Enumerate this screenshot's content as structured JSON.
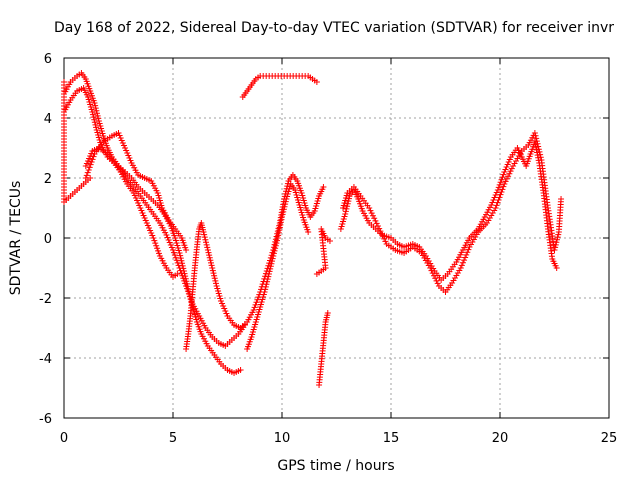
{
  "chart_data": {
    "type": "scatter",
    "title": "Day 168 of 2022, Sidereal Day-to-day VTEC variation (SDTVAR) for receiver invr",
    "xlabel": "GPS time / hours",
    "ylabel": "SDTVAR / TECUs",
    "xlim": [
      0,
      25
    ],
    "ylim": [
      -6,
      6
    ],
    "xticks": [
      0,
      5,
      10,
      15,
      20,
      25
    ],
    "yticks": [
      -6,
      -4,
      -2,
      0,
      2,
      4,
      6
    ],
    "grid": true,
    "marker": "plus",
    "marker_color": "#ff0000",
    "series": [
      {
        "name": "trace-1",
        "points": [
          [
            0.0,
            4.8
          ],
          [
            0.3,
            5.2
          ],
          [
            0.6,
            5.4
          ],
          [
            0.8,
            5.5
          ],
          [
            1.0,
            5.3
          ],
          [
            1.2,
            4.9
          ],
          [
            1.4,
            4.5
          ],
          [
            1.6,
            3.9
          ],
          [
            1.8,
            3.4
          ],
          [
            2.0,
            3.0
          ],
          [
            2.2,
            2.7
          ],
          [
            2.5,
            2.4
          ],
          [
            2.8,
            2.2
          ],
          [
            3.1,
            2.0
          ],
          [
            3.4,
            1.7
          ],
          [
            3.7,
            1.5
          ],
          [
            4.0,
            1.3
          ],
          [
            4.3,
            1.1
          ],
          [
            4.6,
            0.8
          ],
          [
            4.9,
            0.4
          ],
          [
            5.1,
            0.0
          ],
          [
            5.3,
            -0.5
          ],
          [
            5.5,
            -1.1
          ],
          [
            5.7,
            -1.7
          ],
          [
            5.9,
            -2.3
          ],
          [
            6.1,
            -2.8
          ],
          [
            6.3,
            -3.2
          ],
          [
            6.6,
            -3.6
          ],
          [
            6.9,
            -3.9
          ],
          [
            7.2,
            -4.2
          ],
          [
            7.5,
            -4.4
          ],
          [
            7.8,
            -4.5
          ],
          [
            8.1,
            -4.4
          ]
        ]
      },
      {
        "name": "trace-2",
        "points": [
          [
            0.0,
            4.2
          ],
          [
            0.3,
            4.6
          ],
          [
            0.6,
            4.9
          ],
          [
            0.9,
            5.0
          ],
          [
            1.1,
            4.7
          ],
          [
            1.3,
            4.2
          ],
          [
            1.5,
            3.6
          ],
          [
            1.7,
            3.1
          ],
          [
            2.0,
            2.7
          ],
          [
            2.3,
            2.5
          ],
          [
            2.6,
            2.3
          ],
          [
            2.9,
            2.0
          ],
          [
            3.2,
            1.7
          ],
          [
            3.5,
            1.4
          ],
          [
            3.8,
            1.1
          ],
          [
            4.1,
            0.8
          ],
          [
            4.4,
            0.5
          ],
          [
            4.7,
            0.1
          ],
          [
            5.0,
            -0.4
          ],
          [
            5.3,
            -1.0
          ],
          [
            5.6,
            -1.6
          ],
          [
            5.9,
            -2.2
          ],
          [
            6.2,
            -2.6
          ],
          [
            6.5,
            -3.0
          ],
          [
            6.8,
            -3.3
          ],
          [
            7.1,
            -3.5
          ],
          [
            7.4,
            -3.6
          ],
          [
            7.7,
            -3.4
          ],
          [
            8.0,
            -3.2
          ],
          [
            8.3,
            -2.9
          ]
        ]
      },
      {
        "name": "trace-3",
        "points": [
          [
            1.0,
            2.0
          ],
          [
            1.4,
            2.8
          ],
          [
            1.8,
            3.2
          ],
          [
            2.2,
            3.4
          ],
          [
            2.5,
            3.5
          ],
          [
            2.8,
            3.0
          ],
          [
            3.1,
            2.5
          ],
          [
            3.4,
            2.1
          ],
          [
            3.7,
            2.0
          ],
          [
            4.0,
            1.9
          ],
          [
            4.3,
            1.5
          ],
          [
            4.5,
            1.0
          ],
          [
            4.8,
            0.6
          ],
          [
            5.1,
            0.3
          ],
          [
            5.4,
            0.0
          ],
          [
            5.6,
            -0.4
          ]
        ]
      },
      {
        "name": "trace-4",
        "points": [
          [
            1.0,
            2.4
          ],
          [
            1.3,
            2.9
          ],
          [
            1.6,
            3.0
          ],
          [
            2.0,
            2.8
          ],
          [
            2.3,
            2.5
          ],
          [
            2.6,
            2.2
          ],
          [
            2.9,
            1.8
          ],
          [
            3.2,
            1.5
          ],
          [
            3.5,
            1.0
          ],
          [
            3.8,
            0.5
          ],
          [
            4.1,
            0.0
          ],
          [
            4.4,
            -0.6
          ],
          [
            4.7,
            -1.0
          ],
          [
            5.0,
            -1.3
          ],
          [
            5.2,
            -1.2
          ]
        ]
      },
      {
        "name": "trace-5",
        "points": [
          [
            5.6,
            -3.7
          ],
          [
            5.7,
            -3.2
          ],
          [
            5.8,
            -2.6
          ],
          [
            5.9,
            -1.8
          ],
          [
            6.0,
            -1.0
          ],
          [
            6.1,
            -0.3
          ],
          [
            6.2,
            0.3
          ],
          [
            6.3,
            0.5
          ],
          [
            6.4,
            0.2
          ],
          [
            6.6,
            -0.4
          ],
          [
            6.8,
            -1.0
          ],
          [
            7.0,
            -1.6
          ],
          [
            7.2,
            -2.1
          ],
          [
            7.5,
            -2.6
          ],
          [
            7.8,
            -2.9
          ],
          [
            8.1,
            -3.0
          ],
          [
            8.4,
            -2.8
          ],
          [
            8.7,
            -2.4
          ],
          [
            9.0,
            -1.8
          ],
          [
            9.3,
            -1.1
          ],
          [
            9.6,
            -0.4
          ],
          [
            9.9,
            0.5
          ],
          [
            10.1,
            1.3
          ],
          [
            10.3,
            1.9
          ],
          [
            10.5,
            2.1
          ],
          [
            10.7,
            1.9
          ],
          [
            10.9,
            1.5
          ],
          [
            11.1,
            1.0
          ],
          [
            11.3,
            0.7
          ],
          [
            11.5,
            0.9
          ],
          [
            11.7,
            1.4
          ],
          [
            11.9,
            1.7
          ]
        ]
      },
      {
        "name": "trace-6",
        "points": [
          [
            8.4,
            -3.7
          ],
          [
            8.6,
            -3.3
          ],
          [
            8.8,
            -2.8
          ],
          [
            9.0,
            -2.3
          ],
          [
            9.2,
            -1.8
          ],
          [
            9.4,
            -1.2
          ],
          [
            9.6,
            -0.6
          ],
          [
            9.8,
            0.0
          ],
          [
            10.0,
            0.7
          ],
          [
            10.2,
            1.3
          ],
          [
            10.4,
            1.8
          ],
          [
            10.6,
            1.6
          ],
          [
            10.8,
            1.1
          ],
          [
            11.0,
            0.6
          ],
          [
            11.2,
            0.2
          ]
        ]
      },
      {
        "name": "trace-7",
        "points": [
          [
            8.2,
            4.7
          ],
          [
            8.4,
            4.9
          ],
          [
            8.6,
            5.1
          ],
          [
            8.8,
            5.3
          ],
          [
            9.0,
            5.4
          ],
          [
            11.2,
            5.4
          ],
          [
            11.4,
            5.3
          ],
          [
            11.6,
            5.2
          ]
        ]
      },
      {
        "name": "trace-8",
        "points": [
          [
            11.7,
            -4.9
          ],
          [
            11.8,
            -4.2
          ],
          [
            11.9,
            -3.5
          ],
          [
            12.0,
            -2.8
          ],
          [
            12.1,
            -2.5
          ]
        ]
      },
      {
        "name": "trace-9",
        "points": [
          [
            11.6,
            -1.2
          ],
          [
            11.8,
            -1.1
          ],
          [
            12.0,
            -1.0
          ],
          [
            11.8,
            0.3
          ],
          [
            12.0,
            0.0
          ],
          [
            12.2,
            -0.1
          ]
        ]
      },
      {
        "name": "trace-10",
        "points": [
          [
            12.7,
            0.3
          ],
          [
            12.9,
            0.8
          ],
          [
            13.1,
            1.4
          ],
          [
            13.3,
            1.6
          ],
          [
            13.5,
            1.3
          ],
          [
            13.7,
            0.9
          ],
          [
            14.0,
            0.5
          ],
          [
            14.3,
            0.3
          ],
          [
            14.6,
            0.1
          ],
          [
            15.0,
            0.0
          ],
          [
            15.3,
            -0.2
          ],
          [
            15.6,
            -0.3
          ],
          [
            16.0,
            -0.2
          ],
          [
            16.3,
            -0.3
          ],
          [
            16.6,
            -0.6
          ],
          [
            17.0,
            -1.1
          ],
          [
            17.3,
            -1.4
          ],
          [
            17.6,
            -1.2
          ],
          [
            18.0,
            -0.8
          ],
          [
            18.3,
            -0.4
          ],
          [
            18.6,
            0.0
          ],
          [
            19.0,
            0.3
          ],
          [
            19.3,
            0.7
          ],
          [
            19.6,
            1.1
          ],
          [
            19.9,
            1.6
          ],
          [
            20.2,
            2.2
          ],
          [
            20.5,
            2.7
          ],
          [
            20.8,
            3.0
          ],
          [
            21.0,
            2.7
          ],
          [
            21.2,
            2.4
          ],
          [
            21.4,
            2.8
          ],
          [
            21.6,
            3.2
          ],
          [
            21.8,
            2.5
          ],
          [
            22.0,
            1.5
          ],
          [
            22.2,
            0.3
          ],
          [
            22.4,
            -0.7
          ],
          [
            22.6,
            -1.0
          ]
        ]
      },
      {
        "name": "trace-11",
        "points": [
          [
            12.8,
            1.0
          ],
          [
            13.0,
            1.5
          ],
          [
            13.3,
            1.7
          ],
          [
            13.6,
            1.4
          ],
          [
            14.0,
            1.0
          ],
          [
            14.4,
            0.4
          ],
          [
            14.8,
            -0.2
          ],
          [
            15.2,
            -0.4
          ],
          [
            15.6,
            -0.5
          ],
          [
            16.0,
            -0.3
          ],
          [
            16.4,
            -0.5
          ],
          [
            16.8,
            -1.0
          ],
          [
            17.2,
            -1.6
          ],
          [
            17.5,
            -1.8
          ],
          [
            17.8,
            -1.5
          ],
          [
            18.2,
            -1.0
          ],
          [
            18.6,
            -0.3
          ],
          [
            19.0,
            0.2
          ],
          [
            19.4,
            0.5
          ],
          [
            19.8,
            1.0
          ],
          [
            20.2,
            1.8
          ],
          [
            20.6,
            2.4
          ],
          [
            21.0,
            2.9
          ],
          [
            21.3,
            3.1
          ],
          [
            21.6,
            3.5
          ],
          [
            21.9,
            2.6
          ],
          [
            22.2,
            1.0
          ],
          [
            22.5,
            -0.4
          ],
          [
            22.7,
            0.2
          ],
          [
            22.8,
            1.3
          ]
        ]
      },
      {
        "name": "trace-12",
        "points": [
          [
            0.0,
            5.2
          ],
          [
            0.0,
            3.7
          ],
          [
            0.0,
            1.2
          ],
          [
            1.2,
            2.0
          ]
        ]
      }
    ]
  }
}
